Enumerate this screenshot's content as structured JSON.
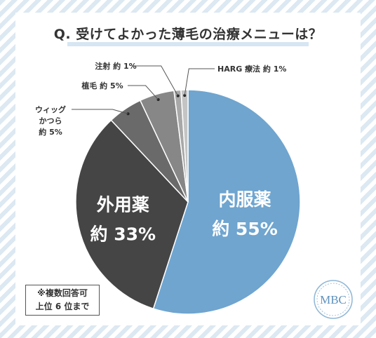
{
  "title": "Q. 受けてよかった薄毛の治療メニューは？",
  "note": {
    "line1": "※複数回答可",
    "line2": "上位 6 位まで"
  },
  "logo": {
    "text": "MBC"
  },
  "colors": {
    "inner_medicine": "#6fa5cf",
    "external_medicine": "#454545",
    "wig": "#6a6a6a",
    "transplant": "#878787",
    "injection": "#a8a8a8",
    "harg": "#c4c4c4",
    "leader": "#555555"
  },
  "chart_data": {
    "type": "pie",
    "title": "Q. 受けてよかった薄毛の治療メニューは？",
    "start": "top, clockwise",
    "slices": [
      {
        "label": "内服薬",
        "value": 55,
        "value_label": "約 55%",
        "label_position": "inside"
      },
      {
        "label": "外用薬",
        "value": 33,
        "value_label": "約 33%",
        "label_position": "inside"
      },
      {
        "label": "ウィッグ かつら",
        "label_lines": [
          "ウィッグ",
          "かつら"
        ],
        "value": 5,
        "value_label": "約 5%",
        "label_position": "outside-left"
      },
      {
        "label": "植毛",
        "value": 5,
        "value_label": "約 5%",
        "label_position": "outside-left"
      },
      {
        "label": "注射",
        "value": 1,
        "value_label": "約 1%",
        "label_position": "outside-left"
      },
      {
        "label": "HARG 療法",
        "value": 1,
        "value_label": "約 1%",
        "label_position": "outside-right"
      }
    ]
  }
}
